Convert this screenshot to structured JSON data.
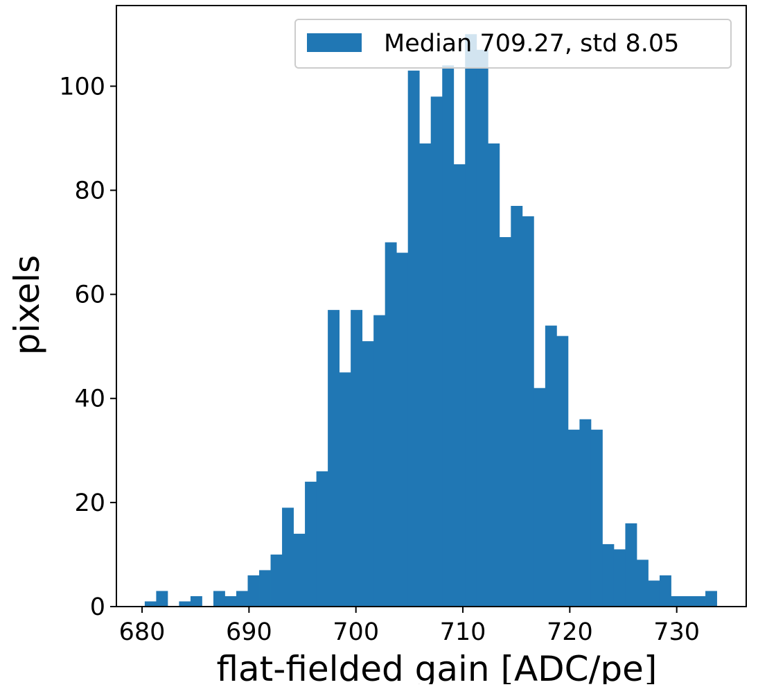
{
  "chart_data": {
    "type": "bar",
    "subtype": "histogram",
    "xlabel": "flat-fielded gain [ADC/pe]",
    "ylabel": "pixels",
    "xlim": [
      677.6,
      736.5
    ],
    "ylim": [
      0,
      115.5
    ],
    "xticks": [
      680,
      690,
      700,
      710,
      720,
      730
    ],
    "yticks": [
      0,
      20,
      40,
      60,
      80,
      100
    ],
    "bin_width": 1.07,
    "bin_start": 680.25,
    "series": [
      {
        "name": "Median 709.27, std 8.05",
        "color": "#2077b4",
        "values": [
          1,
          3,
          0,
          1,
          2,
          0,
          3,
          2,
          3,
          6,
          7,
          10,
          19,
          14,
          24,
          26,
          57,
          45,
          57,
          51,
          56,
          70,
          68,
          103,
          89,
          98,
          104,
          85,
          110,
          107,
          89,
          71,
          77,
          75,
          42,
          54,
          52,
          34,
          36,
          34,
          12,
          11,
          16,
          9,
          5,
          6,
          2,
          2,
          2,
          3
        ]
      }
    ],
    "legend_position": "upper-right",
    "grid": false
  }
}
